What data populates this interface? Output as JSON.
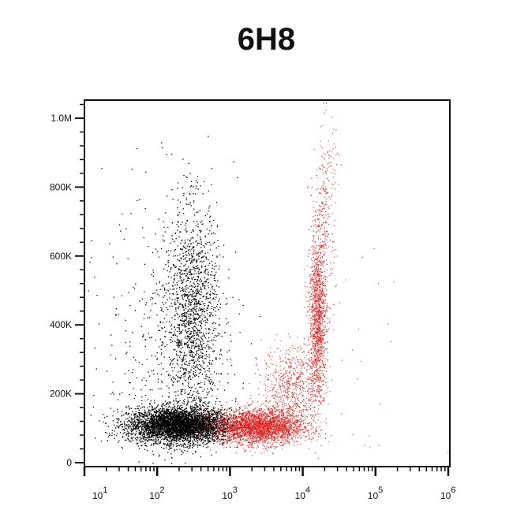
{
  "chart_data": {
    "type": "scatter",
    "title": "6H8",
    "xlabel": "",
    "ylabel": "",
    "x_scale": "log",
    "xlim": [
      10,
      1000000
    ],
    "ylim": [
      0,
      1050000
    ],
    "x_ticks": [
      {
        "base": "10",
        "exp": "1",
        "value": 10
      },
      {
        "base": "10",
        "exp": "2",
        "value": 100
      },
      {
        "base": "10",
        "exp": "3",
        "value": 1000
      },
      {
        "base": "10",
        "exp": "4",
        "value": 10000
      },
      {
        "base": "10",
        "exp": "5",
        "value": 100000
      },
      {
        "base": "10",
        "exp": "6",
        "value": 1000000
      }
    ],
    "y_ticks": [
      {
        "label": "0",
        "value": 0
      },
      {
        "label": "200K",
        "value": 200000
      },
      {
        "label": "400K",
        "value": 400000
      },
      {
        "label": "600K",
        "value": 600000
      },
      {
        "label": "800K",
        "value": 800000
      },
      {
        "label": "1.0M",
        "value": 1000000
      }
    ],
    "grid": false,
    "legend": "none",
    "populations": [
      {
        "color": "#000000",
        "clusters": [
          {
            "x_center": 200,
            "x_log_sd": 0.35,
            "y_center": 110000,
            "y_sd": 25000,
            "n": 4500
          },
          {
            "x_center": 300,
            "x_log_sd": 0.18,
            "y_center": 420000,
            "y_sd": 160000,
            "n": 1500
          },
          {
            "x_center": 150,
            "x_log_sd": 0.45,
            "y_center": 350000,
            "y_sd": 220000,
            "n": 500
          }
        ]
      },
      {
        "color": "#e02020",
        "clusters": [
          {
            "x_center": 2500,
            "x_log_sd": 0.3,
            "y_center": 105000,
            "y_sd": 25000,
            "n": 3000
          },
          {
            "x_center": 16000,
            "x_log_sd": 0.06,
            "y_center": 420000,
            "y_sd": 120000,
            "n": 1400
          },
          {
            "x_center": 20000,
            "x_log_sd": 0.08,
            "y_center": 750000,
            "y_sd": 130000,
            "n": 250
          },
          {
            "x_center": 7000,
            "x_log_sd": 0.2,
            "y_center": 220000,
            "y_sd": 60000,
            "n": 700
          },
          {
            "x_center": 60000,
            "x_log_sd": 0.4,
            "y_center": 300000,
            "y_sd": 200000,
            "n": 25
          }
        ]
      }
    ]
  }
}
